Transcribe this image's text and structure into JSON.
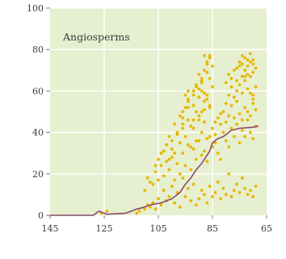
{
  "chart_data": {
    "type": "scatter",
    "title": "Angiosperms",
    "xlabel": "",
    "ylabel": "",
    "x_reversed": true,
    "xlim": [
      145,
      65
    ],
    "ylim": [
      0,
      100
    ],
    "xticks": [
      145,
      125,
      105,
      85,
      65
    ],
    "xtick_labels": [
      "145",
      "125",
      "105",
      "85",
      "65"
    ],
    "yticks": [
      0,
      20,
      40,
      60,
      80,
      100
    ],
    "ytick_labels": [
      "0",
      "20",
      "40",
      "60",
      "80",
      "100"
    ],
    "grid": true,
    "colors": {
      "plot_background": "#e6efcf",
      "grid": "#ffffff",
      "points": "#e8b700",
      "line": "#8a4a6e",
      "axis_text": "#3a3a3a"
    },
    "series": [
      {
        "kind": "points",
        "x": [
          126,
          124,
          113,
          112,
          110,
          109,
          108,
          107,
          106,
          105,
          104,
          103,
          102,
          101,
          100,
          99,
          98,
          97,
          96,
          95,
          94,
          93,
          92,
          91,
          90,
          89,
          88,
          87,
          86,
          85,
          84,
          83,
          82,
          81,
          80,
          79,
          78,
          77,
          76,
          75,
          74,
          73,
          72,
          71,
          70,
          69,
          110,
          109,
          107,
          106,
          105,
          104,
          103,
          102,
          101,
          100,
          99,
          98,
          97,
          96,
          95,
          94,
          93,
          92,
          91,
          90,
          89,
          88,
          87,
          86,
          85,
          84,
          83,
          82,
          81,
          80,
          79,
          78,
          77,
          76,
          75,
          74,
          73,
          72,
          71,
          70,
          69,
          108,
          106,
          104,
          102,
          101,
          100,
          99,
          98,
          97,
          96,
          95,
          94,
          93,
          92,
          91,
          90,
          89,
          88,
          87,
          86,
          85,
          84,
          83,
          82,
          81,
          80,
          79,
          78,
          77,
          76,
          75,
          74,
          73,
          72,
          71,
          70,
          69,
          105,
          103,
          101,
          99,
          97,
          96,
          95,
          94,
          93,
          92,
          91,
          90,
          89,
          88,
          87,
          86,
          84,
          82,
          80,
          79,
          78,
          77,
          76,
          75,
          74,
          73,
          72,
          71,
          70,
          69,
          100,
          98,
          96,
          95,
          94,
          92,
          91,
          90,
          89,
          88,
          87,
          86,
          85,
          80,
          79,
          78,
          77,
          76,
          75,
          74,
          73,
          72,
          71,
          70,
          69,
          96,
          94,
          92,
          91,
          90,
          89,
          88,
          87,
          86,
          85,
          76,
          75,
          74,
          73,
          72,
          71,
          70,
          94,
          92,
          90,
          89,
          88,
          87,
          86,
          74,
          72,
          70,
          89,
          88,
          87,
          86,
          73,
          71,
          70
        ],
        "y": [
          1,
          2,
          1,
          2,
          3,
          5,
          4,
          6,
          3,
          8,
          5,
          12,
          7,
          9,
          14,
          6,
          11,
          4,
          18,
          9,
          13,
          7,
          15,
          5,
          8,
          12,
          10,
          6,
          14,
          9,
          11,
          16,
          8,
          13,
          10,
          20,
          9,
          12,
          15,
          11,
          18,
          13,
          10,
          12,
          9,
          14,
          12,
          18,
          15,
          21,
          17,
          24,
          19,
          26,
          22,
          28,
          17,
          25,
          20,
          30,
          24,
          34,
          22,
          32,
          27,
          36,
          29,
          31,
          26,
          38,
          33,
          35,
          30,
          27,
          40,
          36,
          33,
          42,
          38,
          44,
          35,
          41,
          38,
          46,
          40,
          37,
          43,
          16,
          24,
          30,
          34,
          27,
          36,
          30,
          40,
          35,
          44,
          38,
          46,
          33,
          42,
          36,
          48,
          40,
          45,
          37,
          52,
          42,
          39,
          47,
          44,
          50,
          45,
          48,
          53,
          47,
          55,
          49,
          46,
          52,
          50,
          48,
          56,
          51,
          27,
          31,
          38,
          44,
          48,
          50,
          52,
          55,
          43,
          58,
          50,
          46,
          60,
          51,
          56,
          53,
          45,
          49,
          54,
          58,
          62,
          57,
          60,
          63,
          59,
          65,
          61,
          67,
          58,
          62,
          32,
          39,
          47,
          58,
          60,
          53,
          62,
          57,
          64,
          59,
          69,
          66,
          62,
          64,
          68,
          66,
          70,
          65,
          72,
          67,
          70,
          68,
          74,
          69,
          71,
          42,
          52,
          60,
          63,
          61,
          66,
          70,
          74,
          77,
          72,
          71,
          74,
          73,
          76,
          72,
          78,
          75,
          56,
          46,
          68,
          65,
          77,
          73,
          77,
          77,
          75,
          73,
          50,
          55,
          58,
          76,
          67,
          59,
          54
        ]
      },
      {
        "kind": "line",
        "x": [
          145,
          129,
          127,
          126,
          124,
          117,
          115,
          113,
          110,
          108,
          104,
          100,
          97,
          95,
          93,
          91,
          89,
          86,
          85,
          83,
          81,
          78,
          75,
          70,
          68
        ],
        "y": [
          0,
          0,
          2,
          1.5,
          0.5,
          1,
          2,
          3,
          4,
          5,
          6,
          8,
          11,
          15,
          18,
          22,
          25,
          31,
          35,
          37,
          38,
          41,
          42,
          42.5,
          43
        ]
      }
    ]
  }
}
